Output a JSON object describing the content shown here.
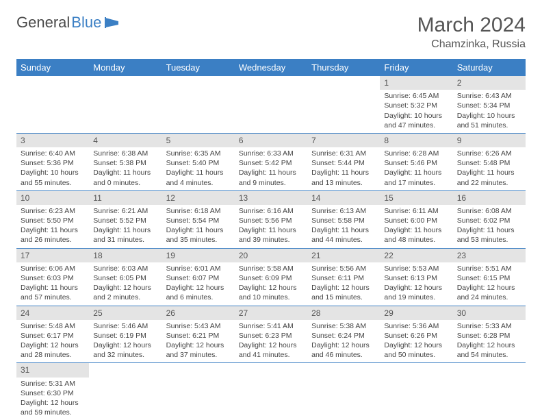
{
  "logo": {
    "text1": "General",
    "text2": "Blue"
  },
  "title": "March 2024",
  "location": "Chamzinka, Russia",
  "colors": {
    "header_bg": "#3b7fc4",
    "header_text": "#ffffff",
    "daynum_bg": "#e4e4e4",
    "row_border": "#3b7fc4",
    "body_text": "#444444",
    "title_text": "#555555"
  },
  "weekdays": [
    "Sunday",
    "Monday",
    "Tuesday",
    "Wednesday",
    "Thursday",
    "Friday",
    "Saturday"
  ],
  "weeks": [
    [
      null,
      null,
      null,
      null,
      null,
      {
        "n": "1",
        "sr": "Sunrise: 6:45 AM",
        "ss": "Sunset: 5:32 PM",
        "dl1": "Daylight: 10 hours",
        "dl2": "and 47 minutes."
      },
      {
        "n": "2",
        "sr": "Sunrise: 6:43 AM",
        "ss": "Sunset: 5:34 PM",
        "dl1": "Daylight: 10 hours",
        "dl2": "and 51 minutes."
      }
    ],
    [
      {
        "n": "3",
        "sr": "Sunrise: 6:40 AM",
        "ss": "Sunset: 5:36 PM",
        "dl1": "Daylight: 10 hours",
        "dl2": "and 55 minutes."
      },
      {
        "n": "4",
        "sr": "Sunrise: 6:38 AM",
        "ss": "Sunset: 5:38 PM",
        "dl1": "Daylight: 11 hours",
        "dl2": "and 0 minutes."
      },
      {
        "n": "5",
        "sr": "Sunrise: 6:35 AM",
        "ss": "Sunset: 5:40 PM",
        "dl1": "Daylight: 11 hours",
        "dl2": "and 4 minutes."
      },
      {
        "n": "6",
        "sr": "Sunrise: 6:33 AM",
        "ss": "Sunset: 5:42 PM",
        "dl1": "Daylight: 11 hours",
        "dl2": "and 9 minutes."
      },
      {
        "n": "7",
        "sr": "Sunrise: 6:31 AM",
        "ss": "Sunset: 5:44 PM",
        "dl1": "Daylight: 11 hours",
        "dl2": "and 13 minutes."
      },
      {
        "n": "8",
        "sr": "Sunrise: 6:28 AM",
        "ss": "Sunset: 5:46 PM",
        "dl1": "Daylight: 11 hours",
        "dl2": "and 17 minutes."
      },
      {
        "n": "9",
        "sr": "Sunrise: 6:26 AM",
        "ss": "Sunset: 5:48 PM",
        "dl1": "Daylight: 11 hours",
        "dl2": "and 22 minutes."
      }
    ],
    [
      {
        "n": "10",
        "sr": "Sunrise: 6:23 AM",
        "ss": "Sunset: 5:50 PM",
        "dl1": "Daylight: 11 hours",
        "dl2": "and 26 minutes."
      },
      {
        "n": "11",
        "sr": "Sunrise: 6:21 AM",
        "ss": "Sunset: 5:52 PM",
        "dl1": "Daylight: 11 hours",
        "dl2": "and 31 minutes."
      },
      {
        "n": "12",
        "sr": "Sunrise: 6:18 AM",
        "ss": "Sunset: 5:54 PM",
        "dl1": "Daylight: 11 hours",
        "dl2": "and 35 minutes."
      },
      {
        "n": "13",
        "sr": "Sunrise: 6:16 AM",
        "ss": "Sunset: 5:56 PM",
        "dl1": "Daylight: 11 hours",
        "dl2": "and 39 minutes."
      },
      {
        "n": "14",
        "sr": "Sunrise: 6:13 AM",
        "ss": "Sunset: 5:58 PM",
        "dl1": "Daylight: 11 hours",
        "dl2": "and 44 minutes."
      },
      {
        "n": "15",
        "sr": "Sunrise: 6:11 AM",
        "ss": "Sunset: 6:00 PM",
        "dl1": "Daylight: 11 hours",
        "dl2": "and 48 minutes."
      },
      {
        "n": "16",
        "sr": "Sunrise: 6:08 AM",
        "ss": "Sunset: 6:02 PM",
        "dl1": "Daylight: 11 hours",
        "dl2": "and 53 minutes."
      }
    ],
    [
      {
        "n": "17",
        "sr": "Sunrise: 6:06 AM",
        "ss": "Sunset: 6:03 PM",
        "dl1": "Daylight: 11 hours",
        "dl2": "and 57 minutes."
      },
      {
        "n": "18",
        "sr": "Sunrise: 6:03 AM",
        "ss": "Sunset: 6:05 PM",
        "dl1": "Daylight: 12 hours",
        "dl2": "and 2 minutes."
      },
      {
        "n": "19",
        "sr": "Sunrise: 6:01 AM",
        "ss": "Sunset: 6:07 PM",
        "dl1": "Daylight: 12 hours",
        "dl2": "and 6 minutes."
      },
      {
        "n": "20",
        "sr": "Sunrise: 5:58 AM",
        "ss": "Sunset: 6:09 PM",
        "dl1": "Daylight: 12 hours",
        "dl2": "and 10 minutes."
      },
      {
        "n": "21",
        "sr": "Sunrise: 5:56 AM",
        "ss": "Sunset: 6:11 PM",
        "dl1": "Daylight: 12 hours",
        "dl2": "and 15 minutes."
      },
      {
        "n": "22",
        "sr": "Sunrise: 5:53 AM",
        "ss": "Sunset: 6:13 PM",
        "dl1": "Daylight: 12 hours",
        "dl2": "and 19 minutes."
      },
      {
        "n": "23",
        "sr": "Sunrise: 5:51 AM",
        "ss": "Sunset: 6:15 PM",
        "dl1": "Daylight: 12 hours",
        "dl2": "and 24 minutes."
      }
    ],
    [
      {
        "n": "24",
        "sr": "Sunrise: 5:48 AM",
        "ss": "Sunset: 6:17 PM",
        "dl1": "Daylight: 12 hours",
        "dl2": "and 28 minutes."
      },
      {
        "n": "25",
        "sr": "Sunrise: 5:46 AM",
        "ss": "Sunset: 6:19 PM",
        "dl1": "Daylight: 12 hours",
        "dl2": "and 32 minutes."
      },
      {
        "n": "26",
        "sr": "Sunrise: 5:43 AM",
        "ss": "Sunset: 6:21 PM",
        "dl1": "Daylight: 12 hours",
        "dl2": "and 37 minutes."
      },
      {
        "n": "27",
        "sr": "Sunrise: 5:41 AM",
        "ss": "Sunset: 6:23 PM",
        "dl1": "Daylight: 12 hours",
        "dl2": "and 41 minutes."
      },
      {
        "n": "28",
        "sr": "Sunrise: 5:38 AM",
        "ss": "Sunset: 6:24 PM",
        "dl1": "Daylight: 12 hours",
        "dl2": "and 46 minutes."
      },
      {
        "n": "29",
        "sr": "Sunrise: 5:36 AM",
        "ss": "Sunset: 6:26 PM",
        "dl1": "Daylight: 12 hours",
        "dl2": "and 50 minutes."
      },
      {
        "n": "30",
        "sr": "Sunrise: 5:33 AM",
        "ss": "Sunset: 6:28 PM",
        "dl1": "Daylight: 12 hours",
        "dl2": "and 54 minutes."
      }
    ],
    [
      {
        "n": "31",
        "sr": "Sunrise: 5:31 AM",
        "ss": "Sunset: 6:30 PM",
        "dl1": "Daylight: 12 hours",
        "dl2": "and 59 minutes."
      },
      null,
      null,
      null,
      null,
      null,
      null
    ]
  ]
}
